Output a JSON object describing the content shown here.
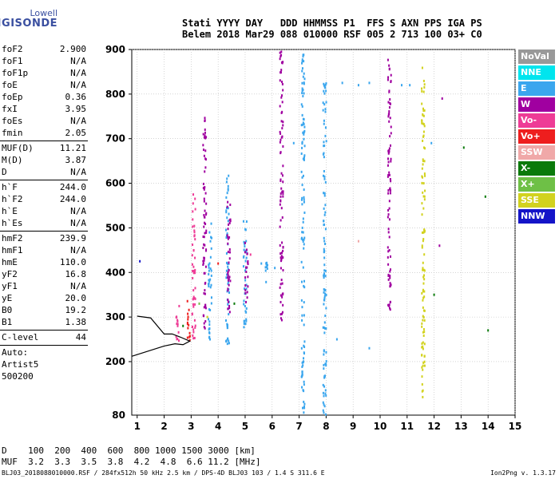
{
  "logo": {
    "top": "Lowell",
    "bottom": "DIGISONDE"
  },
  "header": {
    "line1": "Stati YYYY DAY   DDD HHMMSS P1  FFS S AXN PPS IGA PS",
    "line2": "Belem 2018 Mar29 088 010000 RSF 005 2 713 100 03+ C0"
  },
  "params": [
    {
      "name": "foF2",
      "value": "2.900"
    },
    {
      "name": "foF1",
      "value": "N/A"
    },
    {
      "name": "foF1p",
      "value": "N/A"
    },
    {
      "name": "foE",
      "value": "N/A"
    },
    {
      "name": "foEp",
      "value": "0.36"
    },
    {
      "name": "fxI",
      "value": "3.95"
    },
    {
      "name": "foEs",
      "value": "N/A"
    },
    {
      "name": "fmin",
      "value": "2.05"
    },
    {
      "name": "MUF(D)",
      "value": "11.21"
    },
    {
      "name": "M(D)",
      "value": "3.87"
    },
    {
      "name": "D",
      "value": "N/A"
    },
    {
      "name": "h`F",
      "value": "244.0"
    },
    {
      "name": "h`F2",
      "value": "244.0"
    },
    {
      "name": "h`E",
      "value": "N/A"
    },
    {
      "name": "h`Es",
      "value": "N/A"
    },
    {
      "name": "hmF2",
      "value": "239.9"
    },
    {
      "name": "hmF1",
      "value": "N/A"
    },
    {
      "name": "hmE",
      "value": "110.0"
    },
    {
      "name": "yF2",
      "value": "16.8"
    },
    {
      "name": "yF1",
      "value": "N/A"
    },
    {
      "name": "yE",
      "value": "20.0"
    },
    {
      "name": "B0",
      "value": "19.2"
    },
    {
      "name": "B1",
      "value": "1.38"
    },
    {
      "name": "C-level",
      "value": "44"
    },
    {
      "name": "Auto:",
      "value": ""
    },
    {
      "name": "Artist5",
      "value": ""
    },
    {
      "name": "500200",
      "value": ""
    }
  ],
  "legend": [
    {
      "label": "NoVal",
      "color": "#999999"
    },
    {
      "label": "NNE",
      "color": "#00e5ee"
    },
    {
      "label": "E",
      "color": "#3aa6ee"
    },
    {
      "label": "W",
      "color": "#a000a0"
    },
    {
      "label": "Vo-",
      "color": "#ee3c96"
    },
    {
      "label": "Vo+",
      "color": "#ee1e1e"
    },
    {
      "label": "SSW",
      "color": "#f0a8a8"
    },
    {
      "label": "X-",
      "color": "#0a7a0a"
    },
    {
      "label": "X+",
      "color": "#6ec046"
    },
    {
      "label": "SSE",
      "color": "#d2d21e"
    },
    {
      "label": "NNW",
      "color": "#1414c8"
    }
  ],
  "chart_data": {
    "type": "scatter",
    "title": "",
    "xlabel": "",
    "ylabel": "",
    "xlim": [
      0.8,
      15
    ],
    "ylim": [
      80,
      900
    ],
    "xticks": [
      1,
      2,
      3,
      4,
      5,
      6,
      7,
      8,
      9,
      10,
      11,
      12,
      13,
      14,
      15
    ],
    "yticks": [
      200,
      300,
      400,
      500,
      600,
      700,
      800,
      900
    ],
    "ytick_bottom_label": "80",
    "grid": true,
    "trace_series": {
      "name": "",
      "color": "#000000",
      "points": [
        [
          0.8,
          212
        ],
        [
          2.0,
          235
        ],
        [
          2.4,
          240
        ],
        [
          2.7,
          238
        ],
        [
          2.95,
          246
        ],
        [
          2.6,
          255
        ],
        [
          2.3,
          262
        ],
        [
          2.0,
          262
        ],
        [
          1.5,
          298
        ],
        [
          1.0,
          302
        ]
      ]
    },
    "echo_columns": [
      {
        "x": 2.5,
        "y0": 240,
        "y1": 330,
        "color": "#ee3c96"
      },
      {
        "x": 2.9,
        "y0": 240,
        "y1": 340,
        "color": "#ee1e1e"
      },
      {
        "x": 3.1,
        "y0": 250,
        "y1": 590,
        "color": "#ee3c96"
      },
      {
        "x": 3.5,
        "y0": 260,
        "y1": 760,
        "color": "#a000a0"
      },
      {
        "x": 3.7,
        "y0": 250,
        "y1": 520,
        "color": "#3aa6ee"
      },
      {
        "x": 4.35,
        "y0": 240,
        "y1": 630,
        "color": "#3aa6ee"
      },
      {
        "x": 4.4,
        "y0": 300,
        "y1": 560,
        "color": "#a000a0"
      },
      {
        "x": 5.0,
        "y0": 260,
        "y1": 520,
        "color": "#3aa6ee"
      },
      {
        "x": 5.05,
        "y0": 330,
        "y1": 470,
        "color": "#a000a0"
      },
      {
        "x": 5.8,
        "y0": 370,
        "y1": 430,
        "color": "#3aa6ee"
      },
      {
        "x": 6.35,
        "y0": 290,
        "y1": 900,
        "color": "#a000a0"
      },
      {
        "x": 7.15,
        "y0": 80,
        "y1": 900,
        "color": "#3aa6ee"
      },
      {
        "x": 7.95,
        "y0": 80,
        "y1": 830,
        "color": "#3aa6ee"
      },
      {
        "x": 10.35,
        "y0": 300,
        "y1": 880,
        "color": "#a000a0"
      },
      {
        "x": 11.6,
        "y0": 120,
        "y1": 860,
        "color": "#d2d21e"
      }
    ],
    "echo_points": [
      {
        "x": 2.7,
        "y": 280,
        "color": "#0a7a0a"
      },
      {
        "x": 3.3,
        "y": 330,
        "color": "#6ec046"
      },
      {
        "x": 3.6,
        "y": 300,
        "color": "#d2d21e"
      },
      {
        "x": 4.0,
        "y": 420,
        "color": "#ee1e1e"
      },
      {
        "x": 4.6,
        "y": 330,
        "color": "#0a7a0a"
      },
      {
        "x": 5.2,
        "y": 440,
        "color": "#ee3c96"
      },
      {
        "x": 5.6,
        "y": 420,
        "color": "#3aa6ee"
      },
      {
        "x": 6.1,
        "y": 410,
        "color": "#3aa6ee"
      },
      {
        "x": 8.6,
        "y": 825,
        "color": "#3aa6ee"
      },
      {
        "x": 9.2,
        "y": 820,
        "color": "#3aa6ee"
      },
      {
        "x": 9.6,
        "y": 825,
        "color": "#3aa6ee"
      },
      {
        "x": 10.8,
        "y": 820,
        "color": "#3aa6ee"
      },
      {
        "x": 11.1,
        "y": 820,
        "color": "#3aa6ee"
      },
      {
        "x": 9.2,
        "y": 470,
        "color": "#f0a8a8"
      },
      {
        "x": 1.1,
        "y": 425,
        "color": "#1414c8"
      },
      {
        "x": 6.8,
        "y": 690,
        "color": "#3aa6ee"
      },
      {
        "x": 12.2,
        "y": 460,
        "color": "#a000a0"
      },
      {
        "x": 12.0,
        "y": 350,
        "color": "#0a7a0a"
      },
      {
        "x": 13.9,
        "y": 570,
        "color": "#0a7a0a"
      },
      {
        "x": 14.0,
        "y": 270,
        "color": "#0a7a0a"
      },
      {
        "x": 12.3,
        "y": 790,
        "color": "#a000a0"
      },
      {
        "x": 9.6,
        "y": 230,
        "color": "#3aa6ee"
      },
      {
        "x": 8.4,
        "y": 250,
        "color": "#3aa6ee"
      },
      {
        "x": 11.9,
        "y": 690,
        "color": "#3aa6ee"
      },
      {
        "x": 13.1,
        "y": 680,
        "color": "#0a7a0a"
      }
    ]
  },
  "footer": {
    "row1": "D    100  200  400  600  800 1000 1500 3000 [km]",
    "row2": "MUF  3.2  3.3  3.5  3.8  4.2  4.8  6.6 11.2 [MHz]",
    "meta": "BLJ03_2018088010000.RSF / 284fx512h 50 kHz 2.5 km / DPS-4D BLJ03 103 / 1.4 S 311.6 E",
    "version": "Ion2Png v. 1.3.17"
  }
}
